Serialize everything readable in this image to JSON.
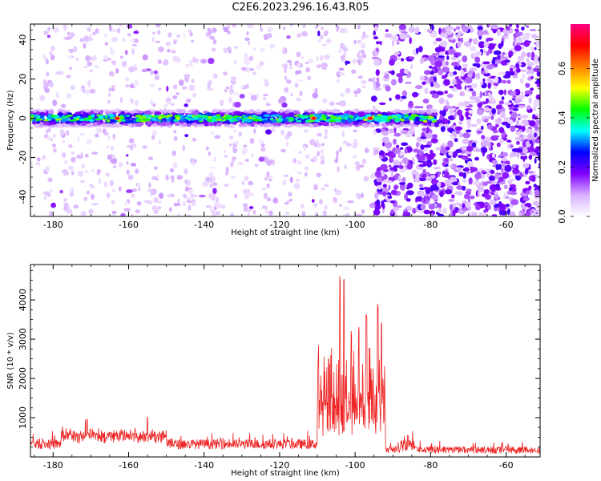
{
  "title": "C2E6.2023.296.16.43.R05",
  "chart_data": [
    {
      "type": "heatmap",
      "title": "C2E6.2023.296.16.43.R05",
      "xlabel": "Height of straight line (km)",
      "ylabel": "Frequency (Hz)",
      "xlim": [
        -186,
        -51
      ],
      "ylim": [
        -50,
        48
      ],
      "xticks": [
        -180,
        -160,
        -140,
        -120,
        -100,
        -80,
        -60
      ],
      "yticks": [
        -40,
        -20,
        0,
        20,
        40
      ],
      "colorbar": {
        "label": "Normalized spectral amplitude",
        "ticks": [
          0.0,
          0.2,
          0.4,
          0.6
        ],
        "range": [
          0,
          0.78
        ],
        "colormap": [
          "#ffffff",
          "#d8b0ff",
          "#8000ff",
          "#0000ff",
          "#00ffff",
          "#00ff00",
          "#ffff00",
          "#ff8000",
          "#ff0000",
          "#ff0080"
        ]
      },
      "features": {
        "main_band_frequency_hz": 0,
        "main_band_halfwidth_hz": 4,
        "main_band_x_range_km": [
          -186,
          -79
        ],
        "peak_amplitude_x_km": [
          -163,
          -111,
          -96
        ],
        "empty_region_km": [
          -94,
          -80
        ],
        "noise_region_start_km": -95
      }
    },
    {
      "type": "line",
      "xlabel": "Height of straight line (km)",
      "ylabel": "SNR (10 * v/v)",
      "xlim": [
        -186,
        -51
      ],
      "ylim": [
        0,
        4900
      ],
      "xticks": [
        -180,
        -160,
        -140,
        -120,
        -100,
        -80,
        -60
      ],
      "yticks": [
        1000,
        2000,
        3000,
        4000
      ],
      "color": "#ee2222",
      "baseline_range": [
        60,
        600
      ],
      "notable_peaks": [
        {
          "x": -171,
          "y": 1000
        },
        {
          "x": -155,
          "y": 1050
        },
        {
          "x": -107,
          "y": 2550
        },
        {
          "x": -104,
          "y": 4800
        },
        {
          "x": -103,
          "y": 4700
        },
        {
          "x": -101,
          "y": 3300
        },
        {
          "x": -99,
          "y": 3400
        },
        {
          "x": -97,
          "y": 3800
        },
        {
          "x": -94,
          "y": 3950
        },
        {
          "x": -93,
          "y": 3550
        },
        {
          "x": -86,
          "y": 550
        }
      ]
    }
  ]
}
